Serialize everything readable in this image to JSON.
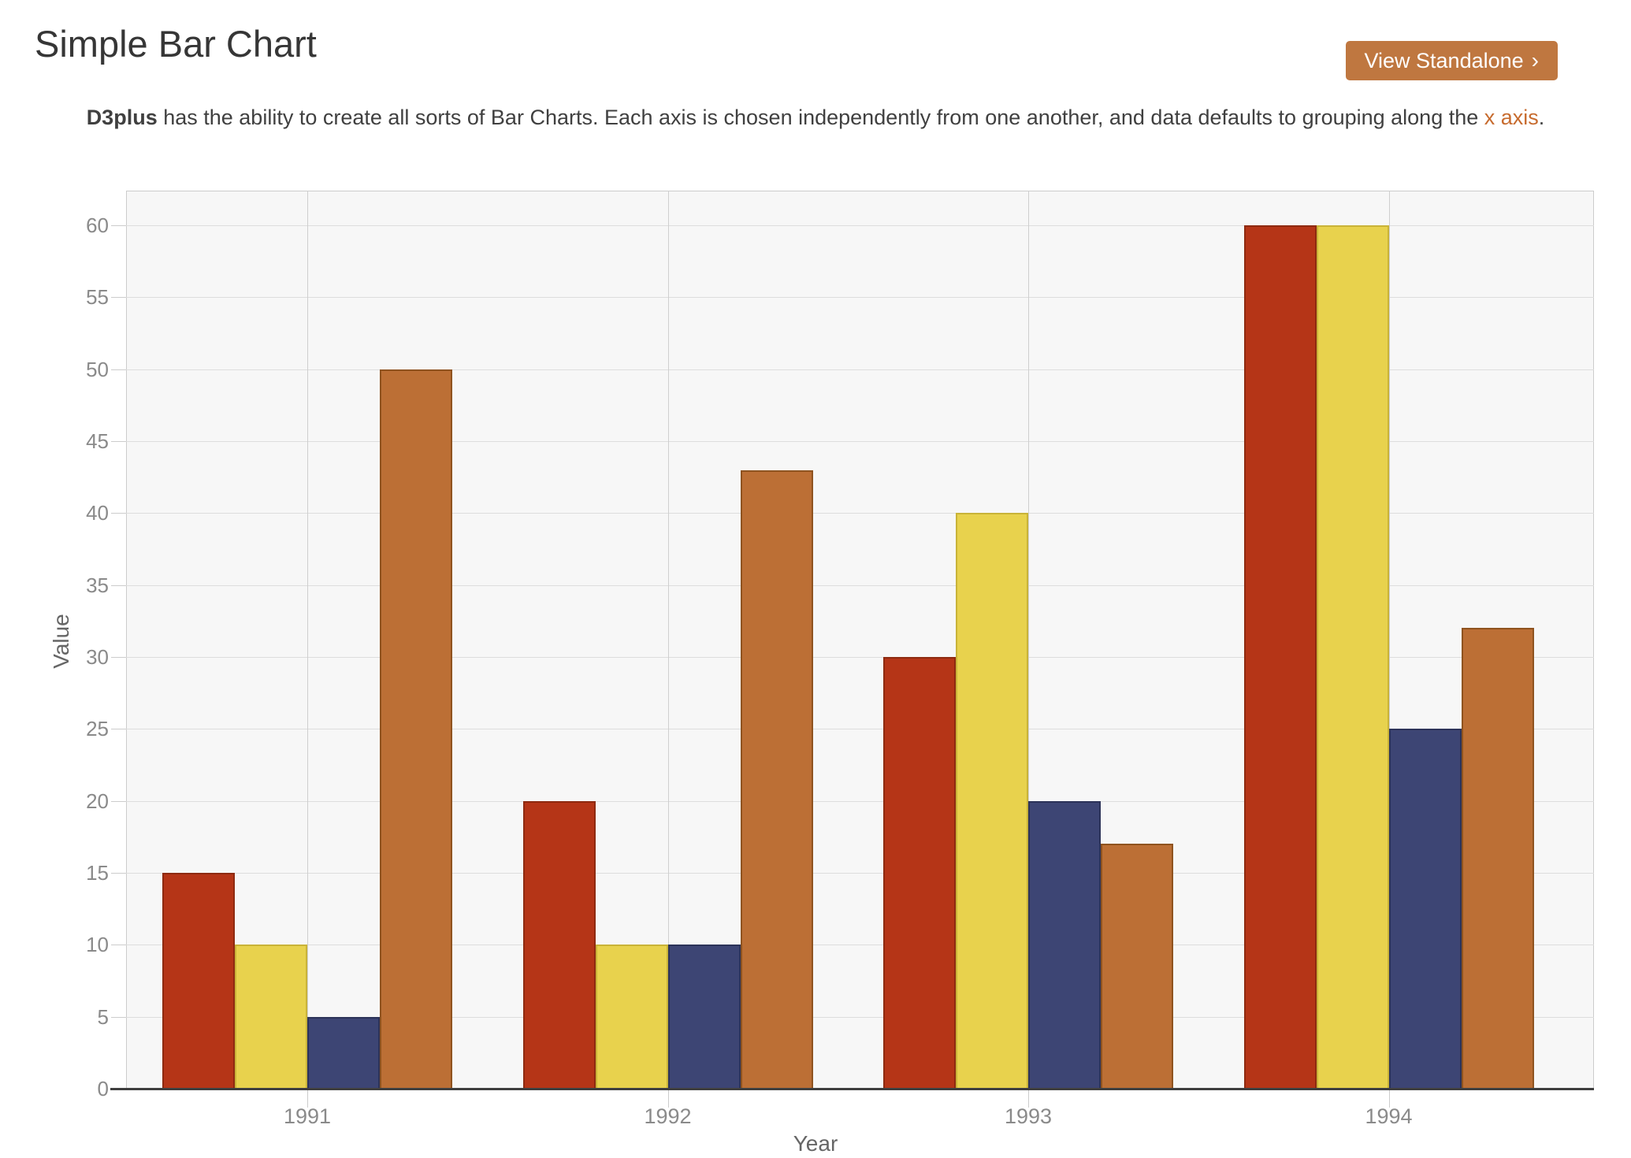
{
  "header": {
    "title": "Simple Bar Chart",
    "button_label": "View Standalone",
    "button_chevron": "›"
  },
  "description": {
    "bold": "D3plus",
    "middle": " has the ability to create all sorts of Bar Charts. Each axis is chosen independently from one another, and data defaults to grouping along the ",
    "link_text": "x axis",
    "period": "."
  },
  "colors": {
    "button_background": "#bf7740",
    "link_orange": "#c76b2e",
    "axis_line": "#3f3f3f",
    "tick_label": "#8a8a8a",
    "plot_background": "#f7f7f7"
  },
  "chart_data": {
    "type": "bar",
    "title": "",
    "xlabel": "Year",
    "ylabel": "Value",
    "categories": [
      "1991",
      "1992",
      "1993",
      "1994"
    ],
    "series": [
      {
        "name": "red",
        "color": "#b53517",
        "border": "#8e2a10",
        "values": [
          15,
          20,
          30,
          60
        ]
      },
      {
        "name": "yellow",
        "color": "#e8d24d",
        "border": "#c9b338",
        "values": [
          10,
          10,
          40,
          60
        ]
      },
      {
        "name": "navy",
        "color": "#3d4574",
        "border": "#2c3359",
        "values": [
          5,
          10,
          20,
          25
        ]
      },
      {
        "name": "orange",
        "color": "#bc6f35",
        "border": "#8f531f",
        "values": [
          50,
          43,
          17,
          32
        ]
      }
    ],
    "ylim": [
      0,
      62
    ],
    "yticks": [
      0,
      5,
      10,
      15,
      20,
      25,
      30,
      35,
      40,
      45,
      50,
      55,
      60
    ],
    "grid": true,
    "legend": "none",
    "grouping": "x axis"
  }
}
